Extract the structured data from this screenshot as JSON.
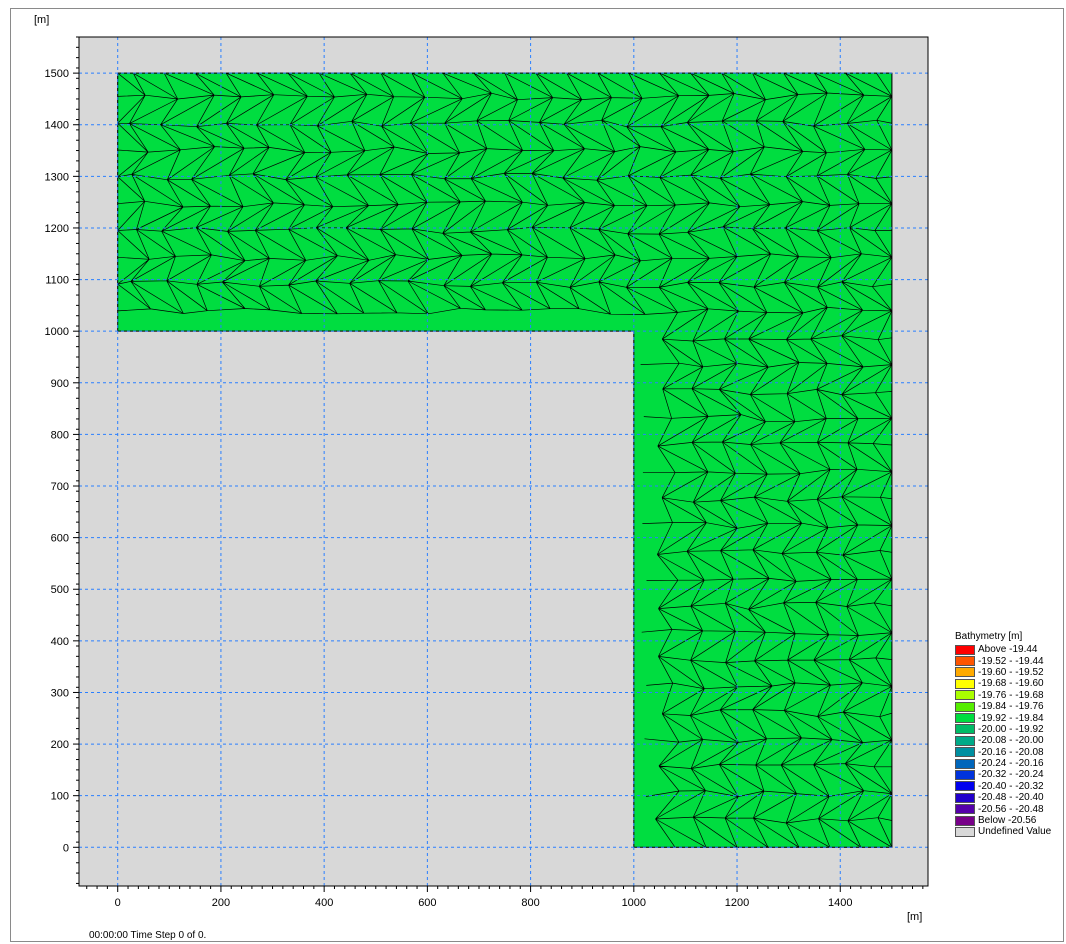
{
  "map": {
    "y_unit_label": "[m]",
    "x_unit_label": "[m]",
    "x_ticks": [
      "0",
      "200",
      "400",
      "600",
      "800",
      "1000",
      "1200",
      "1400"
    ],
    "y_ticks": [
      "0",
      "100",
      "200",
      "300",
      "400",
      "500",
      "600",
      "700",
      "800",
      "900",
      "1000",
      "1100",
      "1200",
      "1300",
      "1400",
      "1500"
    ],
    "x_range": [
      -75,
      1570
    ],
    "y_range": [
      -75,
      1570
    ],
    "domain_polygon": [
      [
        0,
        1000
      ],
      [
        1000,
        1000
      ],
      [
        1000,
        0
      ],
      [
        1500,
        0
      ],
      [
        1500,
        1500
      ],
      [
        0,
        1500
      ]
    ],
    "colors": {
      "domain_fill": "#00dd40",
      "undefined_fill": "#d8d8d8",
      "mesh_line": "#000000",
      "grid_line": "#2a7fff"
    },
    "mesh": "triangular-element-mesh",
    "grid": true
  },
  "legend": {
    "title": "Bathymetry [m]",
    "placement": "right",
    "entries": [
      {
        "label": "Above  -19.44",
        "color": "#ff0000"
      },
      {
        "label": "-19.52 - -19.44",
        "color": "#ff5500"
      },
      {
        "label": "-19.60 - -19.52",
        "color": "#ffaa00"
      },
      {
        "label": "-19.68 - -19.60",
        "color": "#ffff00"
      },
      {
        "label": "-19.76 - -19.68",
        "color": "#aaff00"
      },
      {
        "label": "-19.84 - -19.76",
        "color": "#55ee00"
      },
      {
        "label": "-19.92 - -19.84",
        "color": "#00dd40"
      },
      {
        "label": "-20.00 - -19.92",
        "color": "#00bb66"
      },
      {
        "label": "-20.08 - -20.00",
        "color": "#00aa88"
      },
      {
        "label": "-20.16 - -20.08",
        "color": "#008fa0"
      },
      {
        "label": "-20.24 - -20.16",
        "color": "#0066bb"
      },
      {
        "label": "-20.32 - -20.24",
        "color": "#0033dd"
      },
      {
        "label": "-20.40 - -20.32",
        "color": "#0000ee"
      },
      {
        "label": "-20.48 - -20.40",
        "color": "#2200cc"
      },
      {
        "label": "-20.56 - -20.48",
        "color": "#5500aa"
      },
      {
        "label": "Below  -20.56",
        "color": "#770088"
      },
      {
        "label": "Undefined Value",
        "color": "#d8d8d8"
      }
    ]
  },
  "status": {
    "text": "00:00:00 Time Step 0 of 0."
  }
}
